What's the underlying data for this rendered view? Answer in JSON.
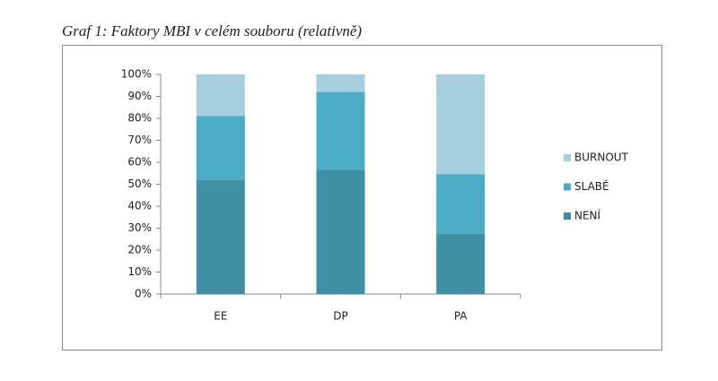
{
  "chart_data": {
    "type": "stacked-bar",
    "title": "Graf 1: Faktory MBI v celém souboru (relativně)",
    "categories": [
      "EE",
      "DP",
      "PA"
    ],
    "series": [
      {
        "name": "NENÍ",
        "color": "#3f8fa5",
        "values": [
          52,
          56.5,
          27.5
        ]
      },
      {
        "name": "SLABĚ",
        "color": "#4bacc6",
        "values": [
          29,
          35.5,
          27
        ]
      },
      {
        "name": "BURNOUT",
        "color": "#a5cfdf",
        "values": [
          19,
          8,
          45.5
        ]
      }
    ],
    "ylim": [
      0,
      100
    ],
    "yticks": [
      {
        "value": 0,
        "label": "0%"
      },
      {
        "value": 10,
        "label": "10%"
      },
      {
        "value": 20,
        "label": "20%"
      },
      {
        "value": 30,
        "label": "30%"
      },
      {
        "value": 40,
        "label": "40%"
      },
      {
        "value": 50,
        "label": "50%"
      },
      {
        "value": 60,
        "label": "60%"
      },
      {
        "value": 70,
        "label": "70%"
      },
      {
        "value": 80,
        "label": "80%"
      },
      {
        "value": 90,
        "label": "90%"
      },
      {
        "value": 100,
        "label": "100%"
      }
    ],
    "legend": "right"
  }
}
